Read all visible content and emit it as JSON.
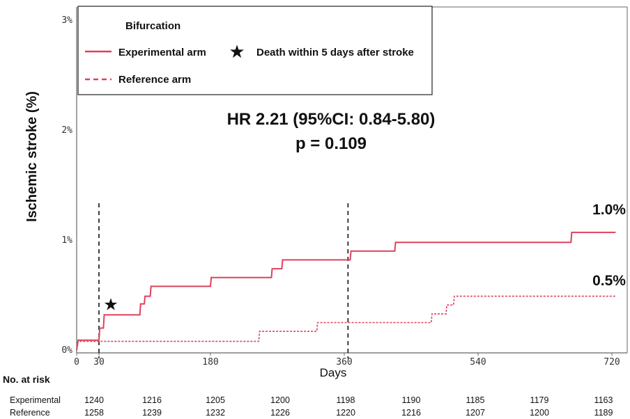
{
  "chart_data": {
    "type": "line",
    "chart_label": "Bifurcation",
    "xlabel": "Days",
    "ylabel": "Ischemic stroke (%)",
    "xlim": [
      0,
      735
    ],
    "ylim": [
      0,
      3
    ],
    "x_ticks": [
      0,
      30,
      180,
      360,
      540,
      720
    ],
    "y_ticks": [
      {
        "value": 0,
        "label": "0%"
      },
      {
        "value": 1,
        "label": "1%"
      },
      {
        "value": 2,
        "label": "2%"
      },
      {
        "value": 3,
        "label": "3%"
      }
    ],
    "series": [
      {
        "name": "Experimental arm",
        "style": "solid",
        "color": "#e0405c",
        "end_label": "1.0%",
        "points": [
          [
            0,
            0
          ],
          [
            2,
            0.09
          ],
          [
            30,
            0.09
          ],
          [
            31,
            0.2
          ],
          [
            36,
            0.2
          ],
          [
            37,
            0.32
          ],
          [
            85,
            0.32
          ],
          [
            86,
            0.42
          ],
          [
            91,
            0.42
          ],
          [
            92,
            0.49
          ],
          [
            99,
            0.49
          ],
          [
            100,
            0.58
          ],
          [
            180,
            0.58
          ],
          [
            181,
            0.66
          ],
          [
            262,
            0.66
          ],
          [
            263,
            0.74
          ],
          [
            276,
            0.74
          ],
          [
            277,
            0.82
          ],
          [
            368,
            0.82
          ],
          [
            369,
            0.9
          ],
          [
            428,
            0.9
          ],
          [
            429,
            0.98
          ],
          [
            665,
            0.98
          ],
          [
            666,
            1.07
          ],
          [
            725,
            1.07
          ]
        ]
      },
      {
        "name": "Reference arm",
        "style": "dashed",
        "color": "#e0405c",
        "end_label": "0.5%",
        "points": [
          [
            0,
            0
          ],
          [
            2,
            0.08
          ],
          [
            245,
            0.08
          ],
          [
            246,
            0.17
          ],
          [
            323,
            0.17
          ],
          [
            324,
            0.25
          ],
          [
            477,
            0.25
          ],
          [
            478,
            0.33
          ],
          [
            497,
            0.33
          ],
          [
            498,
            0.41
          ],
          [
            507,
            0.41
          ],
          [
            508,
            0.49
          ],
          [
            725,
            0.49
          ]
        ]
      }
    ],
    "reference_lines": [
      30,
      365
    ],
    "annotation_markers": [
      {
        "x": 46,
        "y": 0.42,
        "symbol": "★",
        "label": "Death within 5 days after stroke"
      }
    ],
    "stats": {
      "hr_text": "HR 2.21 (95%CI: 0.84-5.80)",
      "p_text": "p = 0.109"
    },
    "legend_placement": "top-left",
    "grid": false
  },
  "risk_table": {
    "title": "No. at risk",
    "rows": [
      {
        "label": "Experimental",
        "values": [
          "1240",
          "1216",
          "1205",
          "1200",
          "1198",
          "1190",
          "1185",
          "1179",
          "1163"
        ]
      },
      {
        "label": "Reference",
        "values": [
          "1258",
          "1239",
          "1232",
          "1226",
          "1220",
          "1216",
          "1207",
          "1200",
          "1189"
        ]
      }
    ]
  }
}
